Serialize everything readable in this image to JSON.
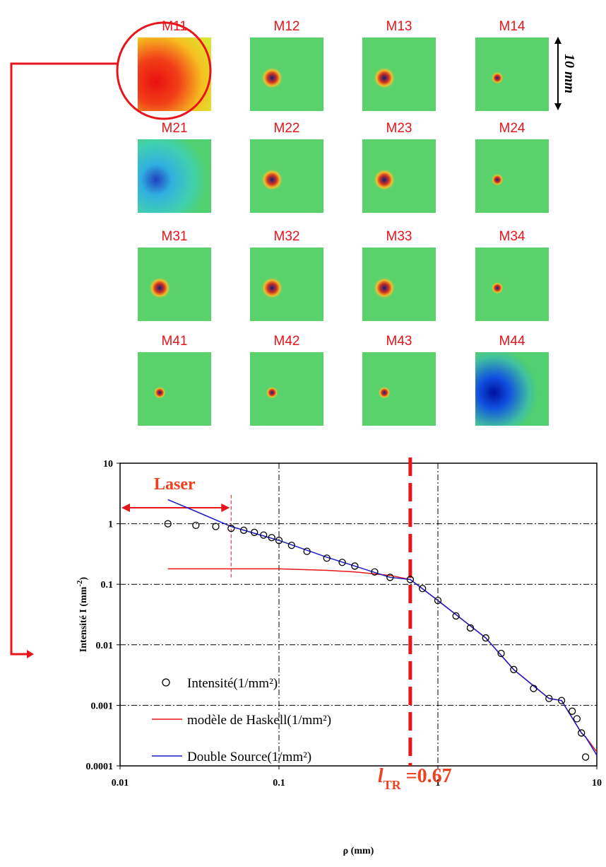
{
  "image_grid": {
    "labels": [
      "M11",
      "M12",
      "M13",
      "M14",
      "M21",
      "M22",
      "M23",
      "M24",
      "M31",
      "M32",
      "M33",
      "M34",
      "M41",
      "M42",
      "M43",
      "M44"
    ],
    "scale_label": "10 mm"
  },
  "chart_data": {
    "type": "line",
    "log_x": true,
    "log_y": true,
    "grid": true,
    "xlabel": "ρ (mm)",
    "ylabel_main": "Intensité I (mm",
    "ylabel_sup": "-2",
    "ylabel_end": ")",
    "xlim": [
      0.01,
      10
    ],
    "xticks": [
      0.01,
      0.1,
      1,
      10
    ],
    "ylim": [
      0.0001,
      10
    ],
    "yticks": [
      0.0001,
      0.001,
      0.01,
      0.1,
      1,
      10
    ],
    "series": [
      {
        "name": "Intensité(1/mm²)",
        "marker": "circle",
        "color": "#000000",
        "x": [
          0.02,
          0.03,
          0.04,
          0.05,
          0.06,
          0.07,
          0.08,
          0.09,
          0.1,
          0.12,
          0.15,
          0.2,
          0.25,
          0.3,
          0.4,
          0.5,
          0.67,
          0.8,
          1,
          1.3,
          1.6,
          2,
          2.5,
          3,
          4,
          5,
          6,
          7,
          7.5,
          8,
          8.5
        ],
        "values": [
          1.0,
          0.94,
          0.9,
          0.84,
          0.78,
          0.72,
          0.65,
          0.59,
          0.53,
          0.44,
          0.35,
          0.27,
          0.23,
          0.2,
          0.16,
          0.13,
          0.12,
          0.085,
          0.054,
          0.03,
          0.019,
          0.013,
          0.0072,
          0.0039,
          0.0019,
          0.0013,
          0.0012,
          0.0008,
          0.0006,
          0.00035,
          0.00014
        ]
      },
      {
        "name": "modèle de Haskell(1/mm²)",
        "marker": "line",
        "color": "#e8141c",
        "x": [
          0.02,
          0.1,
          0.2,
          0.3,
          0.5,
          0.67,
          1,
          2,
          3,
          5,
          6,
          8,
          8.5,
          10
        ],
        "values": [
          0.18,
          0.18,
          0.17,
          0.16,
          0.14,
          0.12,
          0.054,
          0.013,
          0.0039,
          0.0013,
          0.0012,
          0.00035,
          0.0003,
          0.00017
        ]
      },
      {
        "name": "Double Source(1/mm²)",
        "marker": "line",
        "color": "#1a1ac8",
        "x": [
          0.02,
          0.03,
          0.05,
          0.1,
          0.2,
          0.3,
          0.5,
          0.67,
          1,
          2,
          3,
          5,
          6,
          8,
          8.5,
          10
        ],
        "values": [
          2.5,
          1.6,
          0.9,
          0.53,
          0.28,
          0.2,
          0.13,
          0.12,
          0.054,
          0.013,
          0.0039,
          0.0013,
          0.0012,
          0.00035,
          0.0003,
          0.00015
        ]
      }
    ],
    "laser": {
      "text": "Laser",
      "x_from": 0.01,
      "x_to": 0.05,
      "line_y": [
        3,
        0.13
      ]
    },
    "l_tr": {
      "x": 0.67,
      "label_main": "l",
      "label_sub": "TR",
      "label_rest": " =0.67"
    }
  }
}
